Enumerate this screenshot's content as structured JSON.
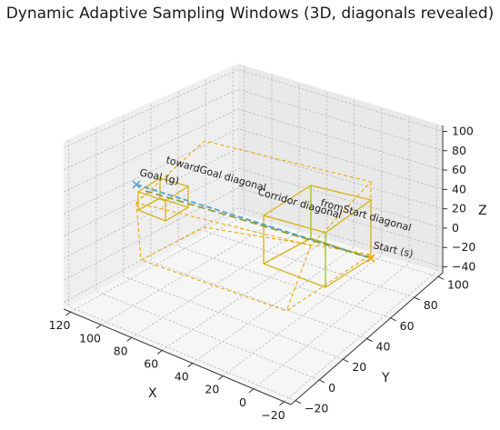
{
  "chart_data": {
    "type": "scatter",
    "title": "Dynamic Adaptive Sampling Windows (3D, diagonals revealed)",
    "xlabel": "X",
    "ylabel": "Y",
    "zlabel": "Z",
    "xlim": [
      -20,
      120
    ],
    "ylim": [
      -20,
      100
    ],
    "zlim": [
      -40,
      100
    ],
    "x_ticks": [
      "120",
      "100",
      "80",
      "60",
      "40",
      "20",
      "0",
      "−20"
    ],
    "y_ticks": [
      "−20",
      "0",
      "20",
      "40",
      "60",
      "80",
      "100"
    ],
    "z_ticks": [
      "100",
      "80",
      "60",
      "40",
      "20",
      "0",
      "−20",
      "−40"
    ],
    "grid": true,
    "markers": [
      {
        "label": "Start (s)",
        "x": 0,
        "y": 0,
        "z": 0,
        "color": "#f0a400"
      },
      {
        "label": "Goal (g)",
        "x": 100,
        "y": 80,
        "z": 50,
        "color": "#5aa8c8"
      }
    ],
    "annotations": [
      "Goal (g)",
      "towardGoal diagonal",
      "Corridor diagonal",
      "fromStart diagonal",
      "Start (s)"
    ],
    "colors": {
      "window": "#d6b21a",
      "corridor": "#f0a400",
      "path": "#5aa8c8",
      "window_alt": "#9cc418"
    }
  }
}
